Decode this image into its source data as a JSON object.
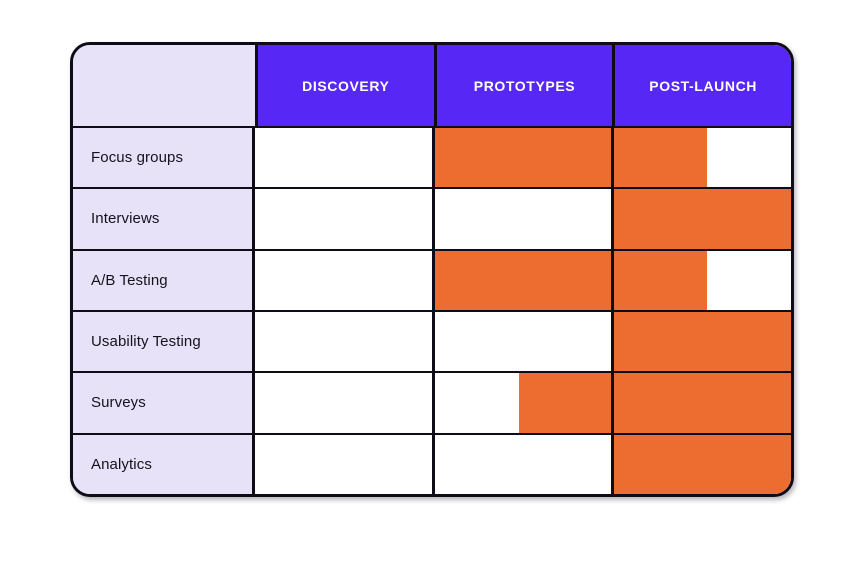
{
  "page": {
    "background": "#ffffff"
  },
  "colors": {
    "page_bg": "#ffffff",
    "header_bg": "#5627f5",
    "header_text": "#ffffff",
    "label_bg": "#e8e2f9",
    "label_text": "#15121c",
    "bar": "#ed6c2f",
    "border": "#0e0d17",
    "cell_bg": "#ffffff"
  },
  "chart_data": {
    "type": "bar",
    "subtype": "gantt-matrix",
    "title": "",
    "orientation": "horizontal",
    "columns": [
      "DISCOVERY",
      "PROTOTYPES",
      "POST-LAUNCH"
    ],
    "x_unit": "phase index: 0 = start of Discovery, 1 = start of Prototypes, 2 = start of Post-Launch, 3 = end of Post-Launch",
    "xlim": [
      0,
      3
    ],
    "grid": true,
    "legend": null,
    "rows": [
      {
        "label": "Focus groups",
        "start": 1.0,
        "end": 2.53,
        "phases_used": [
          "Prototypes",
          "Post-Launch (partial)"
        ]
      },
      {
        "label": "Interviews",
        "start": 2.0,
        "end": 3.0,
        "phases_used": [
          "Post-Launch"
        ]
      },
      {
        "label": "A/B Testing",
        "start": 1.0,
        "end": 2.53,
        "phases_used": [
          "Prototypes",
          "Post-Launch (partial)"
        ]
      },
      {
        "label": "Usability Testing",
        "start": 2.0,
        "end": 3.0,
        "phases_used": [
          "Post-Launch"
        ]
      },
      {
        "label": "Surveys",
        "start": 1.48,
        "end": 3.0,
        "phases_used": [
          "Prototypes (partial)",
          "Post-Launch"
        ]
      },
      {
        "label": "Analytics",
        "start": 2.0,
        "end": 3.0,
        "phases_used": [
          "Post-Launch"
        ]
      }
    ]
  }
}
